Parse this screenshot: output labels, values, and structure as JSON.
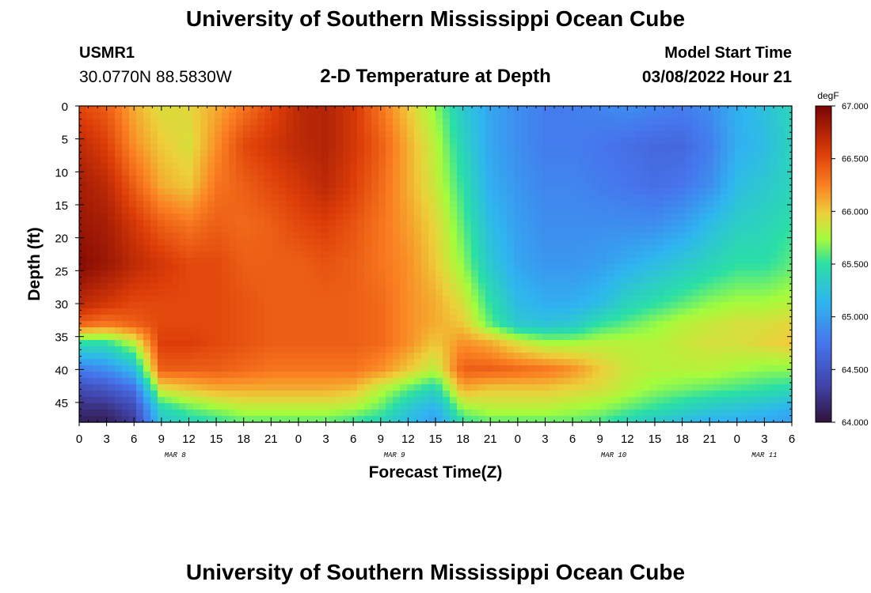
{
  "header": {
    "title": "University of Southern Mississippi Ocean Cube",
    "station_id": "USMR1",
    "coordinates": "30.0770N  88.5830W",
    "model_start_label": "Model Start Time",
    "model_start_value": "03/08/2022 Hour 21",
    "footer_title": "University of Southern Mississippi Ocean Cube"
  },
  "chart_data": {
    "type": "heatmap",
    "title": "2-D Temperature at Depth",
    "xlabel": "Forecast Time(Z)",
    "ylabel": "Depth (ft)",
    "x_hours_range": [
      0,
      78
    ],
    "ylim": [
      0,
      48
    ],
    "y_ticks": [
      0,
      5,
      10,
      15,
      20,
      25,
      30,
      35,
      40,
      45
    ],
    "x_ticks": [
      "0",
      "3",
      "6",
      "9",
      "12",
      "15",
      "18",
      "21",
      "0",
      "3",
      "6",
      "9",
      "12",
      "15",
      "18",
      "21",
      "0",
      "3",
      "6",
      "9",
      "12",
      "15",
      "18",
      "21",
      "0",
      "3",
      "6"
    ],
    "date_labels": [
      {
        "label": "MAR 8",
        "tick_index": 3.5
      },
      {
        "label": "MAR 9",
        "tick_index": 11.5
      },
      {
        "label": "MAR 10",
        "tick_index": 19.5
      },
      {
        "label": "MAR 11",
        "tick_index": 25
      }
    ],
    "colorbar": {
      "unit": "degF",
      "range": [
        64.0,
        67.0
      ],
      "tick_labels": [
        "64.000",
        "64.500",
        "65.000",
        "65.500",
        "66.000",
        "66.500",
        "67.000"
      ],
      "tick_values": [
        64.0,
        64.5,
        65.0,
        65.5,
        66.0,
        66.5,
        67.0
      ]
    },
    "grid_depths": [
      0,
      6,
      12,
      18,
      24,
      30,
      33,
      36,
      40,
      43,
      46,
      48
    ],
    "grid_times": [
      0,
      3,
      6,
      9,
      12,
      15,
      18,
      21,
      24,
      27,
      30,
      33,
      36,
      39,
      42,
      45,
      48,
      51,
      54,
      57,
      60,
      63,
      66,
      69,
      72,
      75,
      78
    ],
    "temperature_columns": [
      [
        66.5,
        66.7,
        66.8,
        66.85,
        66.95,
        66.7,
        66.4,
        65.5,
        64.8,
        64.4,
        64.2,
        64.1
      ],
      [
        66.4,
        66.55,
        66.7,
        66.8,
        66.85,
        66.6,
        66.3,
        65.5,
        64.9,
        64.5,
        64.2,
        64.1
      ],
      [
        66.1,
        66.2,
        66.4,
        66.6,
        66.7,
        66.5,
        66.4,
        65.8,
        65.2,
        64.7,
        64.4,
        64.3
      ],
      [
        65.9,
        66.0,
        66.1,
        66.4,
        66.6,
        66.5,
        66.5,
        66.55,
        66.4,
        65.9,
        65.4,
        65.3
      ],
      [
        65.95,
        65.9,
        66.0,
        66.3,
        66.5,
        66.5,
        66.5,
        66.55,
        66.4,
        66.0,
        65.6,
        65.4
      ],
      [
        66.1,
        66.2,
        66.3,
        66.4,
        66.5,
        66.5,
        66.5,
        66.5,
        66.4,
        66.1,
        65.7,
        65.5
      ],
      [
        66.3,
        66.5,
        66.4,
        66.35,
        66.4,
        66.45,
        66.45,
        66.45,
        66.35,
        66.1,
        65.8,
        65.6
      ],
      [
        66.5,
        66.6,
        66.5,
        66.4,
        66.4,
        66.4,
        66.4,
        66.4,
        66.3,
        66.1,
        65.8,
        65.6
      ],
      [
        66.7,
        66.7,
        66.6,
        66.5,
        66.4,
        66.4,
        66.4,
        66.4,
        66.3,
        66.1,
        65.8,
        65.6
      ],
      [
        66.75,
        66.75,
        66.7,
        66.55,
        66.45,
        66.4,
        66.4,
        66.4,
        66.3,
        66.1,
        65.8,
        65.6
      ],
      [
        66.6,
        66.6,
        66.55,
        66.45,
        66.4,
        66.4,
        66.4,
        66.4,
        66.3,
        66.05,
        65.75,
        65.5
      ],
      [
        66.3,
        66.4,
        66.35,
        66.3,
        66.3,
        66.35,
        66.35,
        66.35,
        66.2,
        65.8,
        65.6,
        65.4
      ],
      [
        66.0,
        66.1,
        66.1,
        66.15,
        66.2,
        66.2,
        66.2,
        66.2,
        66.0,
        65.6,
        65.3,
        65.2
      ],
      [
        65.7,
        65.8,
        65.85,
        65.95,
        66.0,
        66.1,
        66.1,
        66.0,
        65.8,
        65.4,
        65.1,
        65.0
      ],
      [
        65.3,
        65.4,
        65.5,
        65.6,
        65.7,
        65.9,
        66.0,
        66.2,
        66.4,
        66.1,
        65.7,
        65.5
      ],
      [
        65.05,
        65.05,
        65.1,
        65.2,
        65.3,
        65.5,
        65.6,
        66.1,
        66.4,
        66.0,
        65.8,
        65.6
      ],
      [
        64.9,
        64.9,
        64.95,
        65.0,
        65.05,
        65.2,
        65.3,
        65.9,
        66.35,
        66.0,
        65.8,
        65.6
      ],
      [
        64.8,
        64.8,
        64.85,
        64.9,
        64.95,
        65.1,
        65.25,
        65.75,
        66.3,
        66.0,
        65.8,
        65.6
      ],
      [
        64.8,
        64.8,
        64.85,
        64.9,
        64.95,
        65.1,
        65.3,
        65.75,
        66.2,
        65.95,
        65.75,
        65.6
      ],
      [
        64.85,
        64.75,
        64.8,
        64.9,
        65.0,
        65.2,
        65.5,
        65.8,
        66.0,
        65.9,
        65.7,
        65.55
      ],
      [
        64.9,
        64.7,
        64.75,
        64.9,
        65.1,
        65.4,
        65.6,
        65.8,
        65.85,
        65.8,
        65.6,
        65.4
      ],
      [
        64.85,
        64.65,
        64.7,
        64.9,
        65.2,
        65.5,
        65.7,
        65.8,
        65.8,
        65.7,
        65.5,
        65.3
      ],
      [
        64.8,
        64.65,
        64.75,
        65.0,
        65.3,
        65.6,
        65.8,
        65.85,
        65.8,
        65.65,
        65.4,
        65.2
      ],
      [
        64.9,
        64.8,
        64.9,
        65.2,
        65.4,
        65.7,
        65.85,
        65.9,
        65.8,
        65.6,
        65.3,
        65.1
      ],
      [
        65.1,
        65.1,
        65.2,
        65.35,
        65.5,
        65.75,
        65.9,
        65.9,
        65.75,
        65.55,
        65.25,
        65.1
      ],
      [
        65.25,
        65.2,
        65.3,
        65.4,
        65.5,
        65.75,
        65.9,
        65.95,
        65.7,
        65.5,
        65.2,
        65.05
      ],
      [
        65.4,
        65.4,
        65.4,
        65.5,
        65.6,
        65.8,
        65.95,
        66.0,
        65.7,
        65.45,
        65.1,
        65.0
      ]
    ]
  }
}
